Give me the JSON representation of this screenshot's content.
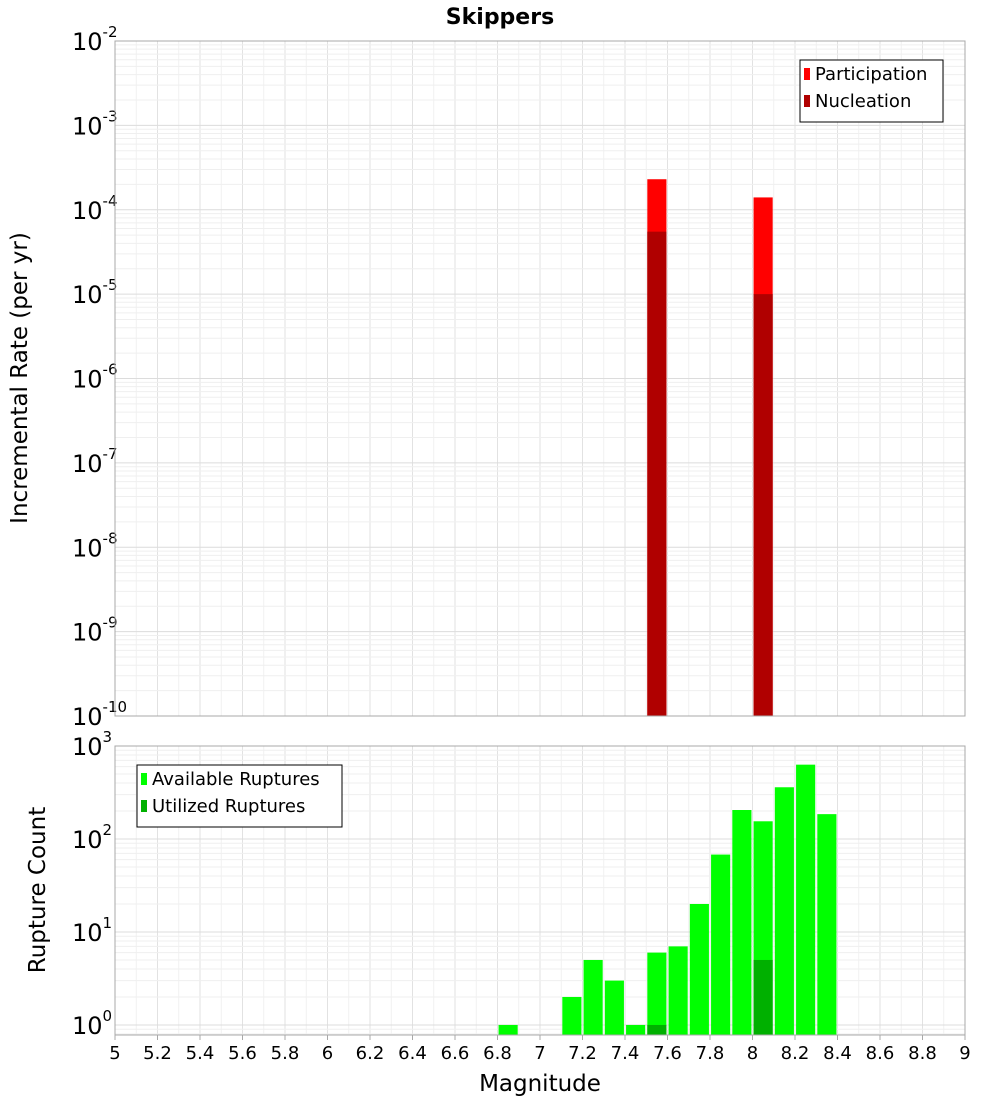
{
  "chart_data": [
    {
      "type": "bar",
      "title": "Skippers",
      "ylabel": "Incremental Rate (per yr)",
      "xlabel": "",
      "x_range": [
        5,
        9
      ],
      "y_scale": "log",
      "ylim": [
        1e-10,
        0.01
      ],
      "y_tick_exponents": [
        "-10",
        "-9",
        "-8",
        "-7",
        "-6",
        "-5",
        "-4",
        "-3",
        "-2"
      ],
      "grid": true,
      "bar_width": 0.09,
      "legend_position": "top-right",
      "series": [
        {
          "name": "Participation",
          "color": "#ff0000",
          "x": [
            7.55,
            8.05
          ],
          "values": [
            0.00023,
            0.00014
          ]
        },
        {
          "name": "Nucleation",
          "color": "#b00000",
          "x": [
            7.55,
            8.05
          ],
          "values": [
            5.5e-05,
            1e-05
          ]
        }
      ]
    },
    {
      "type": "bar",
      "title": "",
      "ylabel": "Rupture Count",
      "xlabel": "Magnitude",
      "x_range": [
        5,
        9
      ],
      "y_scale": "log",
      "ylim": [
        0.78,
        1000
      ],
      "y_tick_exponents": [
        "0",
        "1",
        "2",
        "3"
      ],
      "grid": true,
      "bar_width": 0.09,
      "legend_position": "top-left",
      "x_ticks": [
        "5",
        "5.2",
        "5.4",
        "5.6",
        "5.8",
        "6",
        "6.2",
        "6.4",
        "6.6",
        "6.8",
        "7",
        "7.2",
        "7.4",
        "7.6",
        "7.8",
        "8",
        "8.2",
        "8.4",
        "8.6",
        "8.8",
        "9"
      ],
      "series": [
        {
          "name": "Available Ruptures",
          "color": "#00ff00",
          "x": [
            6.85,
            7.15,
            7.25,
            7.35,
            7.45,
            7.55,
            7.65,
            7.75,
            7.85,
            7.95,
            8.05,
            8.15,
            8.25,
            8.35
          ],
          "values": [
            1,
            2,
            5,
            3,
            1,
            6,
            7,
            20,
            68,
            205,
            155,
            360,
            630,
            185
          ]
        },
        {
          "name": "Utilized Ruptures",
          "color": "#00b000",
          "x": [
            7.55,
            8.05
          ],
          "values": [
            1,
            5
          ]
        }
      ]
    }
  ]
}
